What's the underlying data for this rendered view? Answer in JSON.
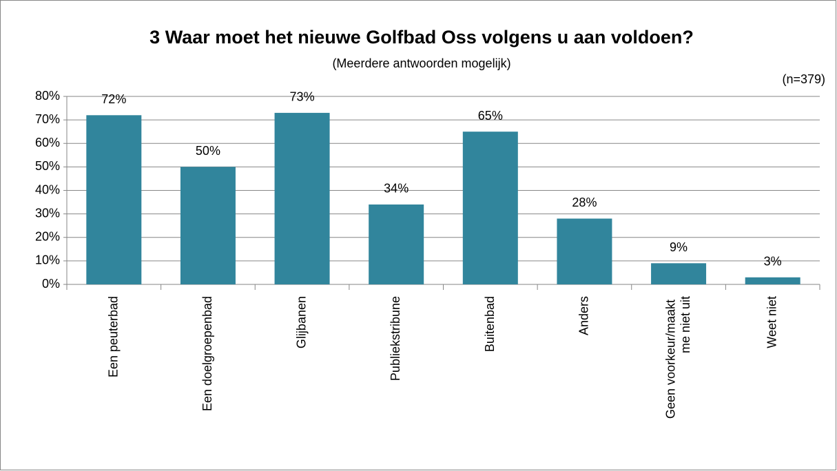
{
  "chart_data": {
    "type": "bar",
    "title": "3 Waar moet het nieuwe Golfbad Oss volgens u aan voldoen?",
    "subtitle": "(Meerdere antwoorden mogelijk)",
    "annotation": "(n=379)",
    "categories": [
      "Een peuterbad",
      "Een doelgroepenbad",
      "Glijbanen",
      "Publiekstribune",
      "Buitenbad",
      "Anders",
      "Geen voorkeur/maakt me niet uit",
      "Weet niet"
    ],
    "values": [
      72,
      50,
      73,
      34,
      65,
      28,
      9,
      3
    ],
    "value_labels": [
      "72%",
      "50%",
      "73%",
      "34%",
      "65%",
      "28%",
      "9%",
      "3%"
    ],
    "color": "#31859c",
    "ylim": [
      0,
      80
    ],
    "yticks": [
      {
        "value": 0,
        "label": "0%"
      },
      {
        "value": 10,
        "label": "10%"
      },
      {
        "value": 20,
        "label": "20%"
      },
      {
        "value": 30,
        "label": "30%"
      },
      {
        "value": 40,
        "label": "40%"
      },
      {
        "value": 50,
        "label": "50%"
      },
      {
        "value": 60,
        "label": "60%"
      },
      {
        "value": 70,
        "label": "70%"
      },
      {
        "value": 80,
        "label": "80%"
      }
    ],
    "grid": true
  }
}
